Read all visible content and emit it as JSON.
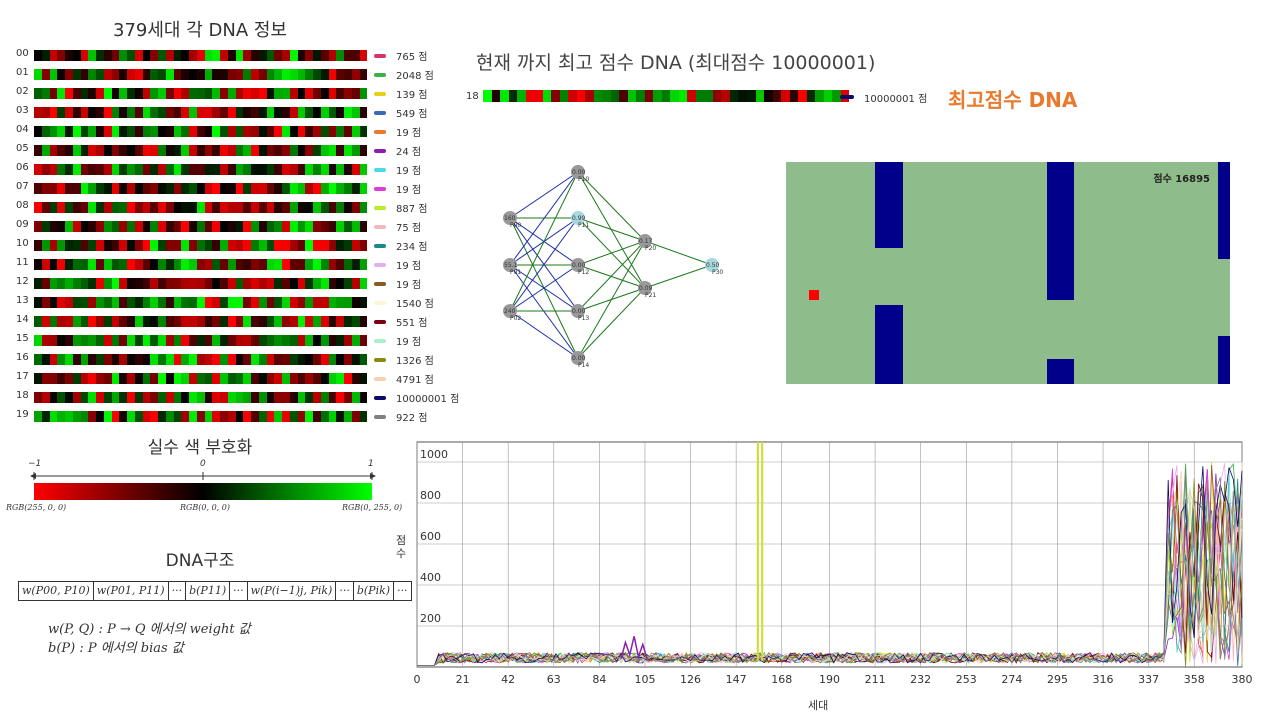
{
  "dna_panel": {
    "title": "379세대 각 DNA 정보",
    "rows": [
      {
        "idx": "00",
        "score": "765 점",
        "color": "#d6336c"
      },
      {
        "idx": "01",
        "score": "2048 점",
        "color": "#3cb043"
      },
      {
        "idx": "02",
        "score": "139 점",
        "color": "#e6d21a"
      },
      {
        "idx": "03",
        "score": "549 점",
        "color": "#3a67b8"
      },
      {
        "idx": "04",
        "score": "19 점",
        "color": "#e8792d"
      },
      {
        "idx": "05",
        "score": "24 점",
        "color": "#8a1fb0"
      },
      {
        "idx": "06",
        "score": "19 점",
        "color": "#4dd8e8"
      },
      {
        "idx": "07",
        "score": "19 점",
        "color": "#e23ad6"
      },
      {
        "idx": "08",
        "score": "887 점",
        "color": "#b7ec2a"
      },
      {
        "idx": "09",
        "score": "75 점",
        "color": "#f5b7bd"
      },
      {
        "idx": "10",
        "score": "234 점",
        "color": "#1a8a86"
      },
      {
        "idx": "11",
        "score": "19 점",
        "color": "#e0b0f0"
      },
      {
        "idx": "12",
        "score": "19 점",
        "color": "#8a5a20"
      },
      {
        "idx": "13",
        "score": "1540 점",
        "color": "#fbf6d6"
      },
      {
        "idx": "14",
        "score": "551 점",
        "color": "#7a0010"
      },
      {
        "idx": "15",
        "score": "19 점",
        "color": "#a8f0c8"
      },
      {
        "idx": "16",
        "score": "1326 점",
        "color": "#8a8a10"
      },
      {
        "idx": "17",
        "score": "4791 점",
        "color": "#f8cfb0"
      },
      {
        "idx": "18",
        "score": "10000001 점",
        "color": "#0a0a6a"
      },
      {
        "idx": "19",
        "score": "922 점",
        "color": "#808080"
      }
    ]
  },
  "best": {
    "title": "현재 까지 최고 점수 DNA (최대점수 10000001)",
    "idx": "18",
    "score": "10000001 점",
    "label": "최고점수 DNA"
  },
  "encoding": {
    "title": "실수 색 부호화",
    "tick_left": "−1",
    "tick_mid": "0",
    "tick_right": "1",
    "rgb_left": "RGB(255, 0, 0)",
    "rgb_mid": "RGB(0, 0, 0)",
    "rgb_right": "RGB(0, 255, 0)"
  },
  "structure": {
    "title": "DNA구조",
    "cells": [
      "w(P00, P10)",
      "w(P01, P11)",
      "···",
      "b(P11)",
      "···",
      "w(P(i−1)j, Pik)",
      "···",
      "b(Pik)",
      "···"
    ],
    "legend_1": "w(P, Q) : P → Q 에서의 weight 값",
    "legend_2": "b(P) : P 에서의 bias 값"
  },
  "network": {
    "nodes": [
      {
        "label": "P10",
        "value": "0.00"
      },
      {
        "label": "P11",
        "value": "0.99"
      },
      {
        "label": "P12",
        "value": "0.00"
      },
      {
        "label": "P13",
        "value": "0.00"
      },
      {
        "label": "P14",
        "value": "0.00"
      },
      {
        "label": "P00",
        "value": "160"
      },
      {
        "label": "P01",
        "value": "55.1"
      },
      {
        "label": "P02",
        "value": "240"
      },
      {
        "label": "P20",
        "value": "0.17"
      },
      {
        "label": "P21",
        "value": "0.09"
      },
      {
        "label": "P30",
        "value": "0.50"
      }
    ]
  },
  "game": {
    "score_text": "점수 16895"
  },
  "chart_data": {
    "type": "line",
    "title": "",
    "xlabel": "세대",
    "ylabel": "점수",
    "xlim": [
      0,
      380
    ],
    "ylim": [
      0,
      1000
    ],
    "x_ticks": [
      "0",
      "21",
      "42",
      "63",
      "84",
      "105",
      "126",
      "147",
      "168",
      "190",
      "211",
      "232",
      "253",
      "274",
      "295",
      "316",
      "337",
      "358",
      "380"
    ],
    "y_ticks": [
      "200",
      "400",
      "600",
      "800",
      "1000"
    ],
    "grid": true,
    "highlights": [
      {
        "x": 100,
        "y": 150
      },
      {
        "x": 158,
        "y": 1000
      }
    ]
  }
}
